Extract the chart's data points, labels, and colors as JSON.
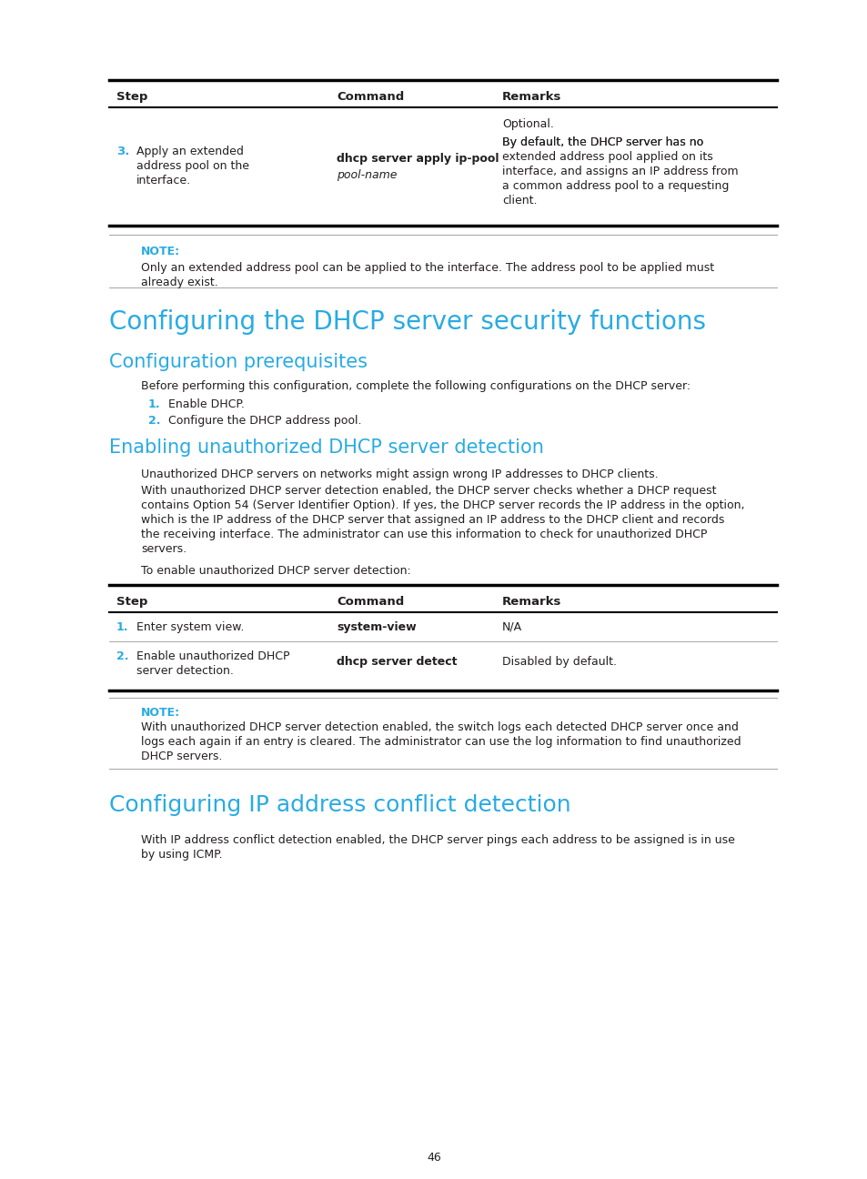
{
  "bg_color": "#ffffff",
  "cyan_color": "#29abe2",
  "black": "#231f20",
  "page_number": "46",
  "section1_title": "Configuring the DHCP server security functions",
  "section2_title": "Configuration prerequisites",
  "section3_title": "Enabling unauthorized DHCP server detection",
  "section4_title": "Configuring IP address conflict detection",
  "note1_label": "NOTE:",
  "note1_line1": "Only an extended address pool can be applied to the interface. The address pool to be applied must",
  "note1_line2": "already exist.",
  "prereq_intro": "Before performing this configuration, complete the following configurations on the DHCP server:",
  "prereq_1": "Enable DHCP.",
  "prereq_2": "Configure the DHCP address pool.",
  "unauth_p1": "Unauthorized DHCP servers on networks might assign wrong IP addresses to DHCP clients.",
  "unauth_p2_lines": [
    "With unauthorized DHCP server detection enabled, the DHCP server checks whether a DHCP request",
    "contains Option 54 (Server Identifier Option). If yes, the DHCP server records the IP address in the option,",
    "which is the IP address of the DHCP server that assigned an IP address to the DHCP client and records",
    "the receiving interface. The administrator can use this information to check for unauthorized DHCP",
    "servers."
  ],
  "unauth_p3": "To enable unauthorized DHCP server detection:",
  "t1_step3_text_lines": [
    "Apply an extended",
    "address pool on the",
    "interface."
  ],
  "t1_cmd_bold": "dhcp server apply ip-pool",
  "t1_cmd_italic": "pool-name",
  "t1_remarks_opt": "Optional.",
  "t1_remarks_lines": [
    "By default, the DHCP server has no",
    "extended address pool applied on its",
    "interface, and assigns an IP address from",
    "a common address pool to a requesting",
    "client."
  ],
  "t2_r1_step": "Enter system view.",
  "t2_r1_cmd": "system-view",
  "t2_r1_rem": "N/A",
  "t2_r2_step1": "Enable unauthorized DHCP",
  "t2_r2_step2": "server detection.",
  "t2_r2_cmd": "dhcp server detect",
  "t2_r2_rem": "Disabled by default.",
  "note2_label": "NOTE:",
  "note2_lines": [
    "With unauthorized DHCP server detection enabled, the switch logs each detected DHCP server once and",
    "logs each again if an entry is cleared. The administrator can use the log information to find unauthorized",
    "DHCP servers."
  ],
  "conflict_p1": "With IP address conflict detection enabled, the DHCP server pings each address to be assigned is in use",
  "conflict_p2": "by using ICMP."
}
